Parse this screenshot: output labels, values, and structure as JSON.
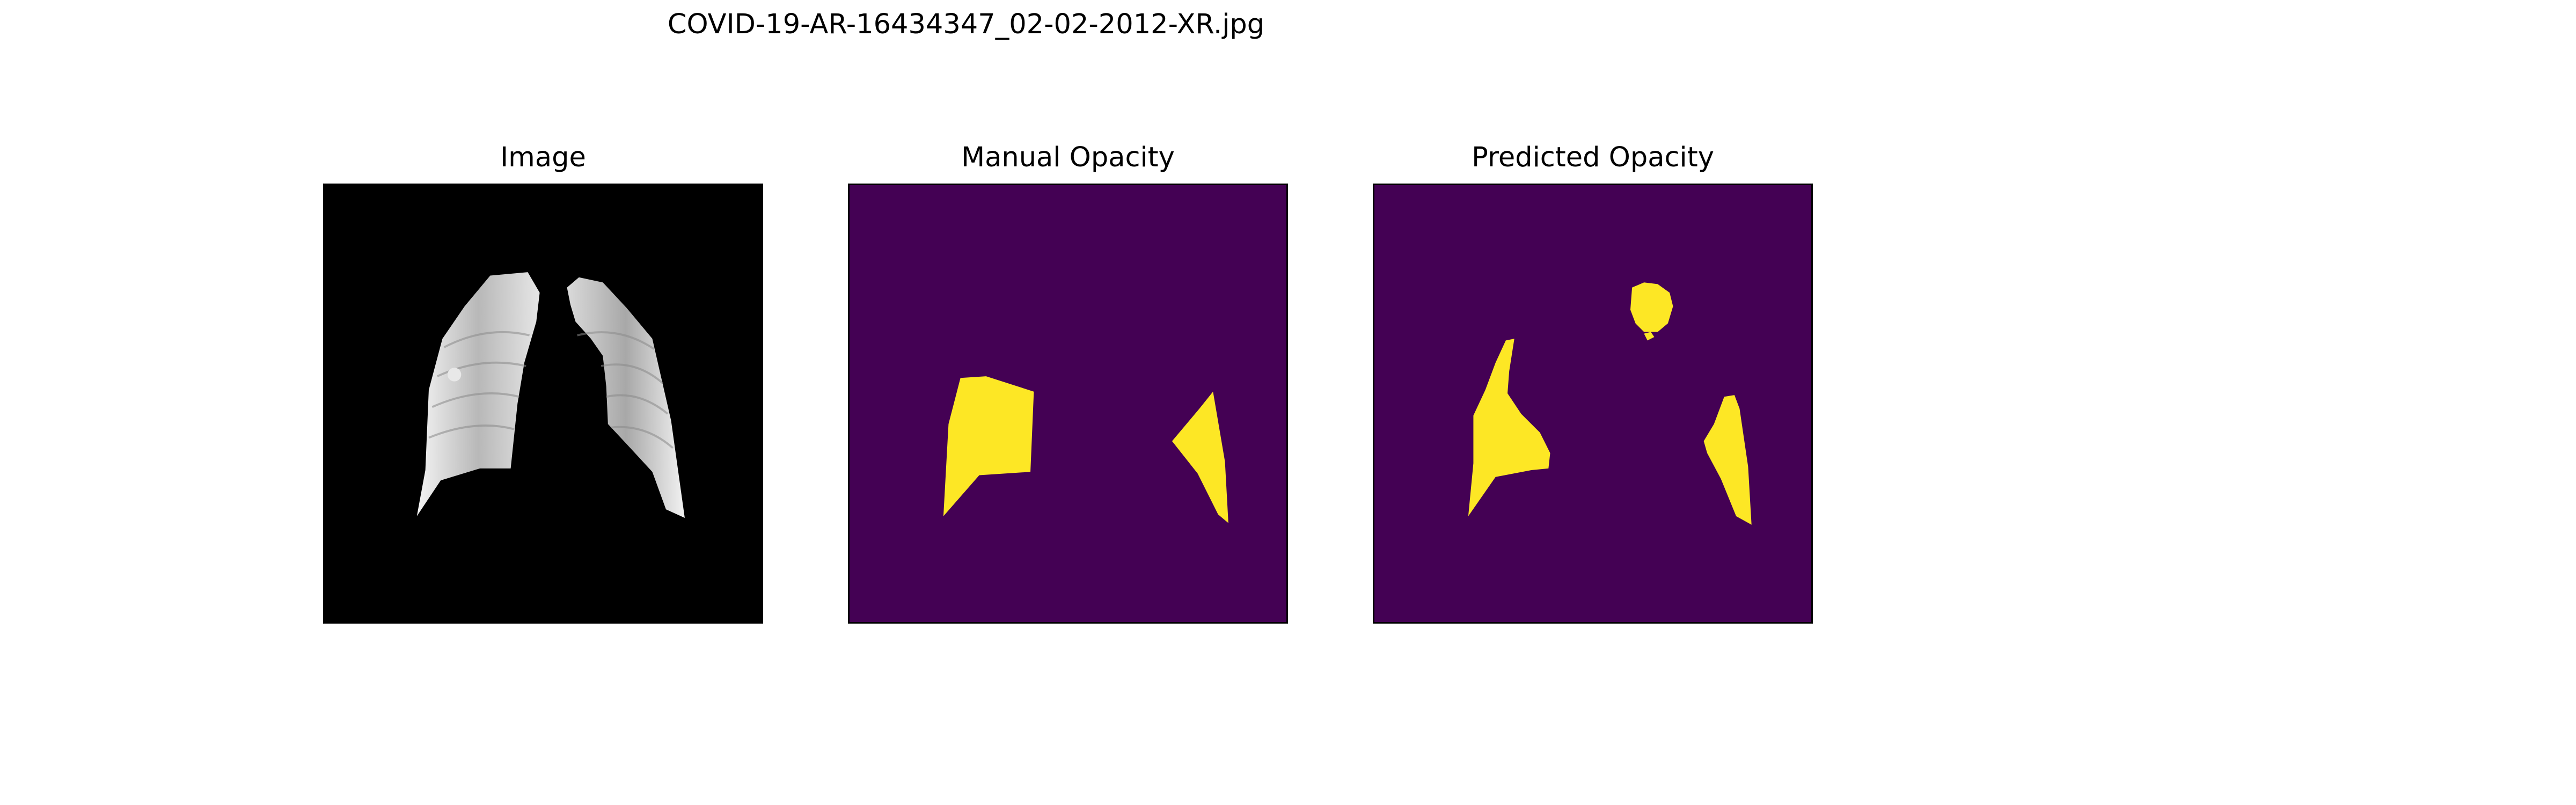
{
  "figure": {
    "suptitle": "COVID-19-AR-16434347_02-02-2012-XR.jpg"
  },
  "panels": [
    {
      "title": "Image"
    },
    {
      "title": "Manual Opacity"
    },
    {
      "title": "Predicted Opacity"
    }
  ],
  "colors": {
    "mask_background": "#440154",
    "mask_foreground": "#fde725",
    "image_background": "#000000"
  }
}
